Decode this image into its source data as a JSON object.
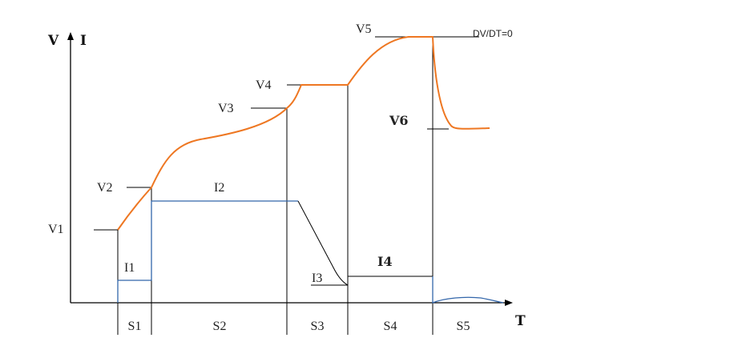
{
  "axes": {
    "y_left": "V",
    "y_right": "I",
    "x": "T"
  },
  "voltage_labels": {
    "v1": "V1",
    "v2": "V2",
    "v3": "V3",
    "v4": "V4",
    "v5": "V5",
    "v6": "V6",
    "dvdt": "DV/DT=0"
  },
  "current_labels": {
    "i1": "I1",
    "i2": "I2",
    "i3": "I3",
    "i4": "I4"
  },
  "stage_labels": [
    "S1",
    "S2",
    "S3",
    "S4",
    "S5"
  ],
  "colors": {
    "voltage_curve": "#ee7722",
    "current_curve": "#3366aa",
    "guides": "#000000",
    "text": "#222222"
  }
}
